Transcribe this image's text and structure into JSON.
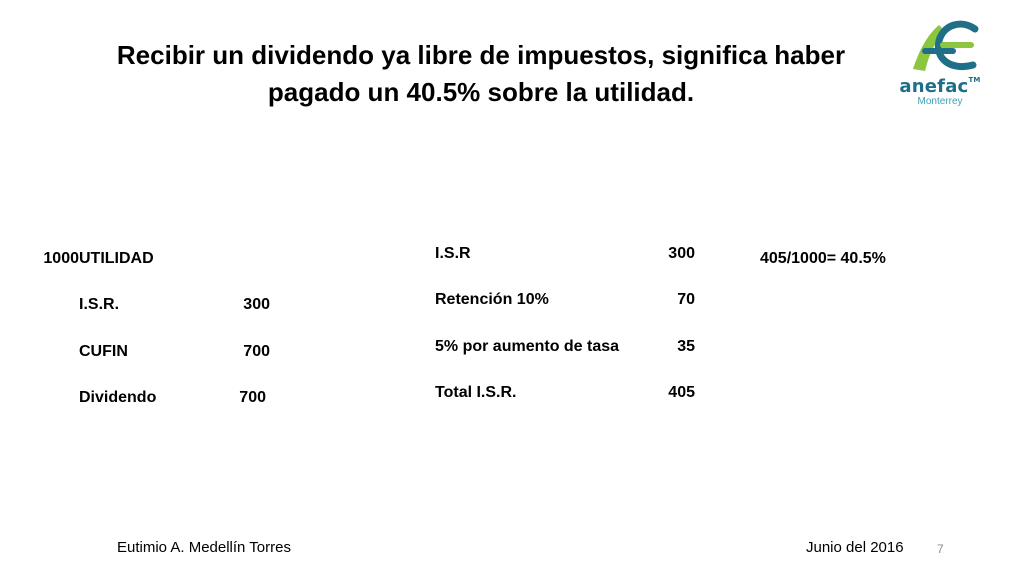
{
  "slide": {
    "title_line1": "Recibir un dividendo ya libre de impuestos, significa haber",
    "title_line2": "pagado un 40.5% sobre la utilidad."
  },
  "logo": {
    "brand": "anefac",
    "trademark": "TM",
    "subtitle": "Monterrey",
    "colors": {
      "green": "#8cc63f",
      "teal": "#1e6f87",
      "light_teal": "#3aa0b8"
    }
  },
  "left_table": [
    {
      "label": "UTILIDAD",
      "value": "1000"
    },
    {
      "label": "I.S.R.",
      "value": "300"
    },
    {
      "label": "CUFIN",
      "value": "700"
    },
    {
      "label": "Dividendo",
      "value": "700"
    }
  ],
  "middle_table": [
    {
      "label": "I.S.R",
      "value": "300"
    },
    {
      "label": "Retención 10%",
      "value": "70"
    },
    {
      "label": "5% por aumento de tasa",
      "value": "35"
    },
    {
      "label": "Total I.S.R.",
      "value": "405"
    }
  ],
  "ratio_text": "405/1000= 40.5%",
  "footer": {
    "author": "Eutimio A. Medellín Torres",
    "date": "Junio del 2016",
    "page_number": "7"
  }
}
